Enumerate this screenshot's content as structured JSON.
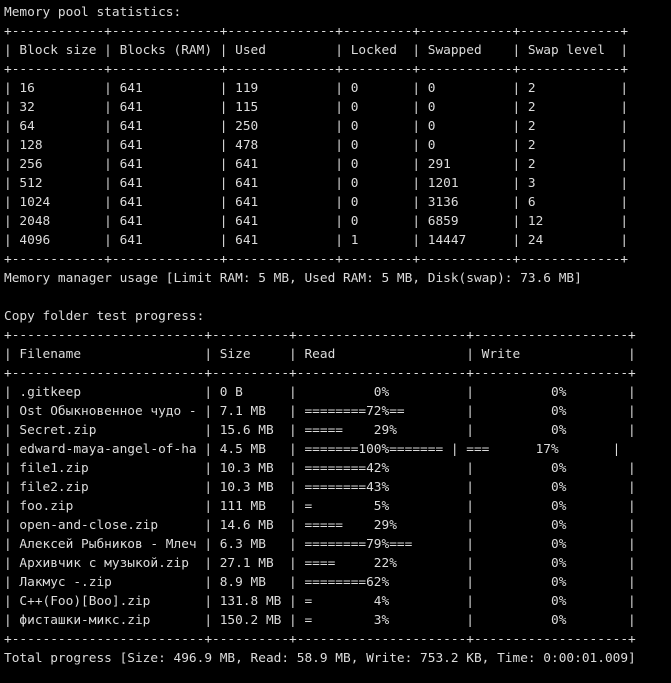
{
  "terminal": {
    "memory": {
      "title": "Memory pool statistics:",
      "border": "+------------+--------------+--------------+---------+------------+-------------+",
      "header": "| Block size | Blocks (RAM) | Used         | Locked  | Swapped    | Swap level  |",
      "rows": [
        "| 16         | 641          | 119          | 0       | 0          | 2           |",
        "| 32         | 641          | 115          | 0       | 0          | 2           |",
        "| 64         | 641          | 250          | 0       | 0          | 2           |",
        "| 128        | 641          | 478          | 0       | 0          | 2           |",
        "| 256        | 641          | 641          | 0       | 291        | 2           |",
        "| 512        | 641          | 641          | 0       | 1201       | 3           |",
        "| 1024       | 641          | 641          | 0       | 3136       | 6           |",
        "| 2048       | 641          | 641          | 0       | 6859       | 12          |",
        "| 4096       | 641          | 641          | 1       | 14447      | 24          |"
      ],
      "usage": "Memory manager usage [Limit RAM: 5 MB, Used RAM: 5 MB, Disk(swap): 73.6 MB]"
    },
    "copy": {
      "title": "Copy folder test progress:",
      "border": "+-------------------------+----------+----------------------+--------------------+",
      "header": "| Filename                | Size     | Read                 | Write              |",
      "rows": [
        "| .gitkeep                | 0 B      |          0%          |          0%        |",
        "| Ost Обыкновенное чудо - | 7.1 MB   | ========72%==        |          0%        |",
        "| Secret.zip              | 15.6 MB  | =====    29%         |          0%        |",
        "| edward-maya-angel-of-ha | 4.5 MB   | =======100%======= | ===      17%       |",
        "| file1.zip               | 10.3 MB  | ========42%          |          0%        |",
        "| file2.zip               | 10.3 MB  | ========43%          |          0%        |",
        "| foo.zip                 | 111 MB   | =        5%          |          0%        |",
        "| open-and-close.zip      | 14.6 MB  | =====    29%         |          0%        |",
        "| Алексей Рыбников - Млеч | 6.3 MB   | ========79%===       |          0%        |",
        "| Архивчик с музыкой.zip  | 27.1 MB  | ====     22%         |          0%        |",
        "| Лакмус -.zip            | 8.9 MB   | ========62%          |          0%        |",
        "| С++(Foo)[Boo].zip       | 131.8 MB | =        4%          |          0%        |",
        "| фисташки-микс.zip       | 150.2 MB | =        3%          |          0%        |"
      ],
      "total": "Total progress [Size: 496.9 MB, Read: 58.9 MB, Write: 753.2 KB, Time: 0:00:01.009]"
    }
  }
}
